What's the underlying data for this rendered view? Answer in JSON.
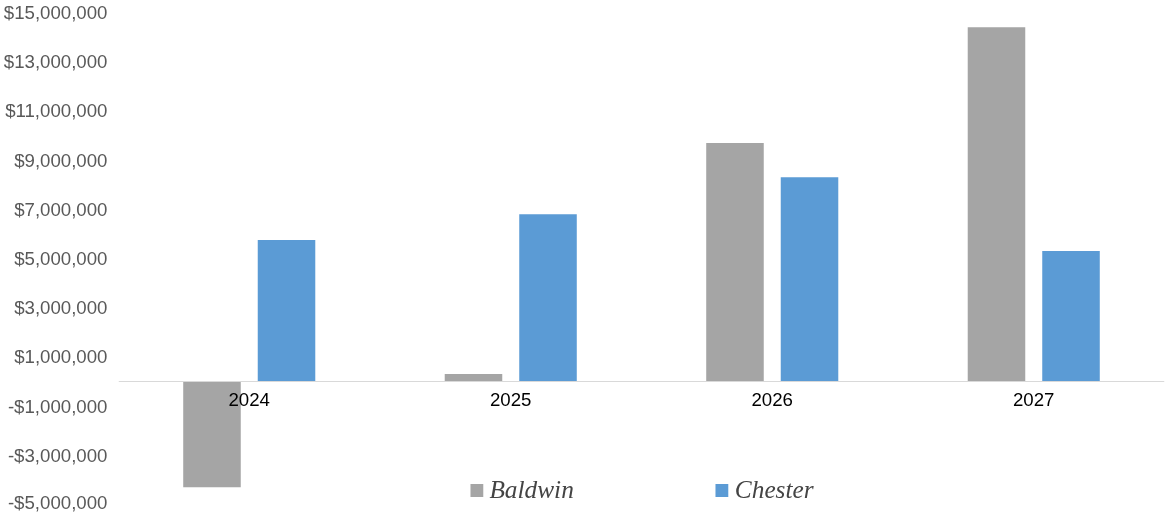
{
  "chart_data": {
    "type": "bar",
    "categories": [
      "2024",
      "2025",
      "2026",
      "2027"
    ],
    "series": [
      {
        "name": "Baldwin",
        "color": "#a5a5a5",
        "values": [
          -4300000,
          300000,
          9700000,
          14400000
        ]
      },
      {
        "name": "Chester",
        "color": "#5b9bd5",
        "values": [
          5750000,
          6800000,
          8300000,
          5300000
        ]
      }
    ],
    "ylim": [
      -5000000,
      15000000
    ],
    "yticks": [
      {
        "value": -5000000,
        "label": "-$5,000,000"
      },
      {
        "value": -3000000,
        "label": "-$3,000,000"
      },
      {
        "value": -1000000,
        "label": "-$1,000,000"
      },
      {
        "value": 1000000,
        "label": "$1,000,000"
      },
      {
        "value": 3000000,
        "label": "$3,000,000"
      },
      {
        "value": 5000000,
        "label": "$5,000,000"
      },
      {
        "value": 7000000,
        "label": "$7,000,000"
      },
      {
        "value": 9000000,
        "label": "$9,000,000"
      },
      {
        "value": 11000000,
        "label": "$11,000,000"
      },
      {
        "value": 13000000,
        "label": "$13,000,000"
      },
      {
        "value": 15000000,
        "label": "$15,000,000"
      }
    ],
    "grid": false,
    "legend": "bottom"
  }
}
